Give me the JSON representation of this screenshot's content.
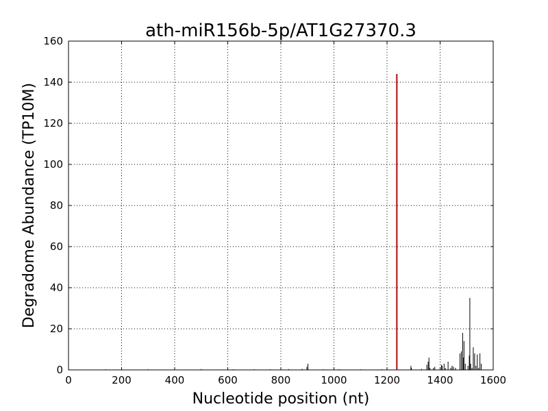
{
  "chart_data": {
    "type": "line",
    "title": "ath-miR156b-5p/AT1G27370.3",
    "xlabel": "Nucleotide position (nt)",
    "ylabel": "Degradome Abundance (TP10M)",
    "xlim": [
      0,
      1600
    ],
    "ylim": [
      0,
      160
    ],
    "xticks": [
      0,
      200,
      400,
      600,
      800,
      1000,
      1200,
      1400,
      1600
    ],
    "yticks": [
      0,
      20,
      40,
      60,
      80,
      100,
      120,
      140,
      160
    ],
    "grid": true,
    "colors": {
      "background": "#ffffff",
      "series": "#000000",
      "highlight": "#cc0000",
      "grid": "#000000"
    },
    "series": [
      {
        "role": "degradome",
        "x": [
          140,
          300,
          500,
          620,
          700,
          760,
          830,
          880,
          898,
          902,
          960,
          1020,
          1100,
          1180,
          1290,
          1292,
          1330,
          1350,
          1355,
          1358,
          1362,
          1375,
          1380,
          1405,
          1408,
          1415,
          1420,
          1430,
          1440,
          1445,
          1450,
          1458,
          1475,
          1480,
          1485,
          1487,
          1490,
          1495,
          1505,
          1510,
          1512,
          1515,
          1520,
          1525,
          1530,
          1535,
          1540,
          1545,
          1550,
          1555
        ],
        "y": [
          0.3,
          0.3,
          0.4,
          0.3,
          0.3,
          0.3,
          0.4,
          0.5,
          1.5,
          3.0,
          0.3,
          0.3,
          0.3,
          0.3,
          2.0,
          1.0,
          0.5,
          2.5,
          4.0,
          6.0,
          1.0,
          1.0,
          1.5,
          2.5,
          2.0,
          3.0,
          1.0,
          4.0,
          1.0,
          2.0,
          1.5,
          1.0,
          8.0,
          9.0,
          18.0,
          6.0,
          14.0,
          3.0,
          2.0,
          7.0,
          35.0,
          3.0,
          1.0,
          11.0,
          8.0,
          2.0,
          7.5,
          1.0,
          8.0,
          3.0
        ]
      },
      {
        "role": "target-site",
        "x": [
          1237
        ],
        "y": [
          144
        ]
      }
    ]
  }
}
